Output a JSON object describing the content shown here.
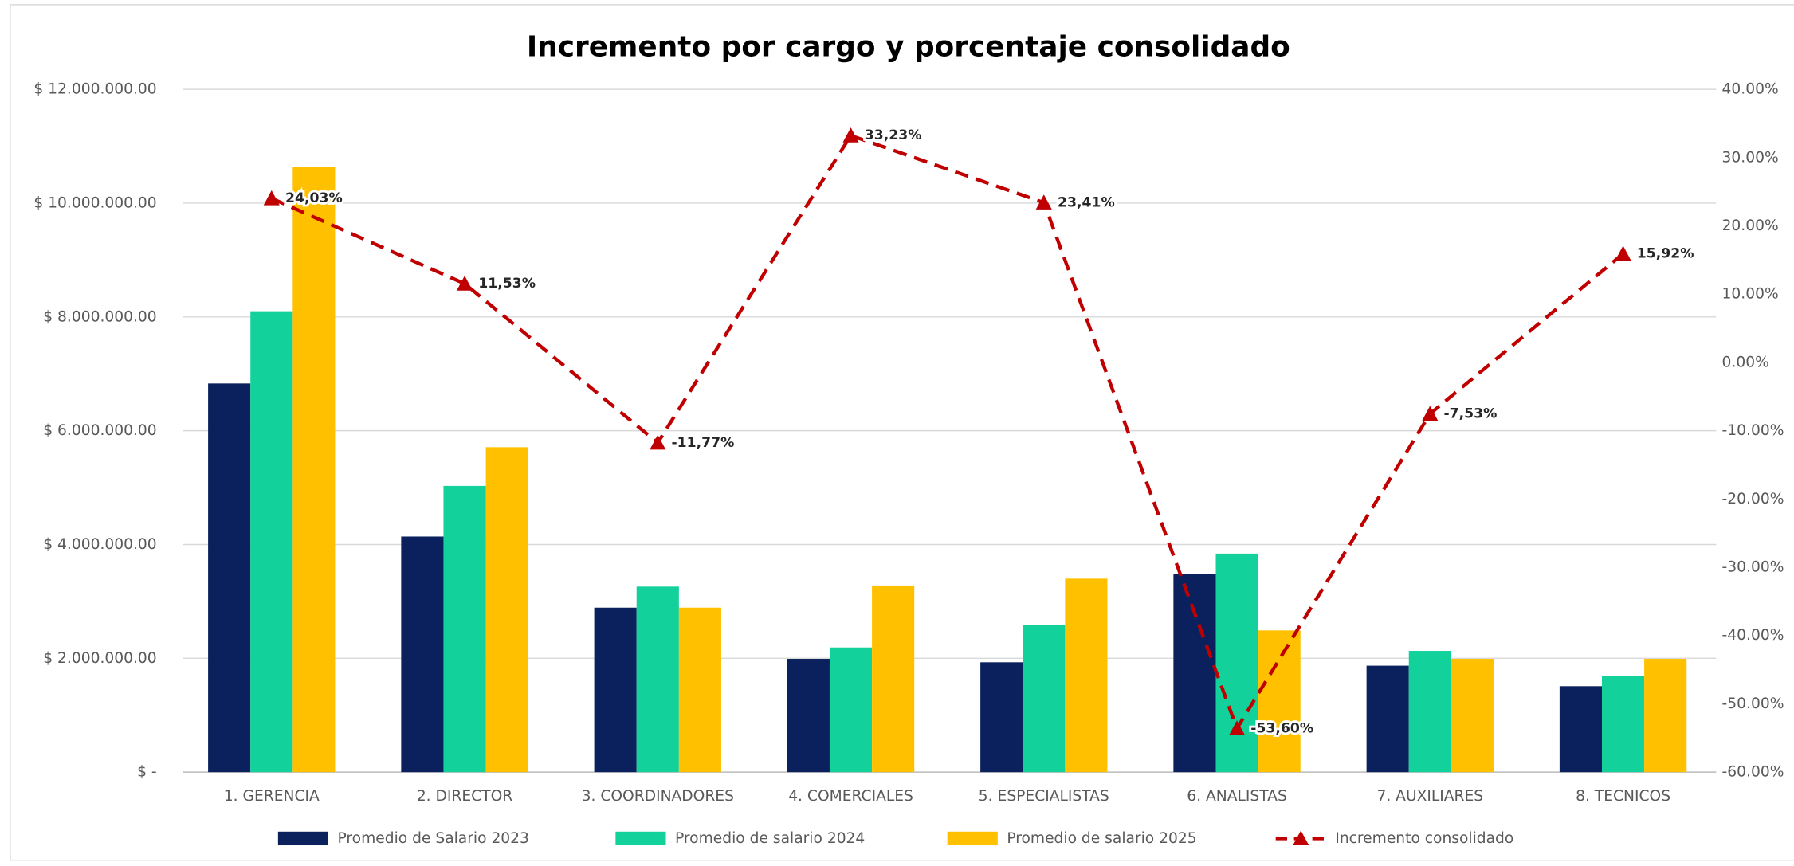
{
  "chart_data": {
    "type": "bar",
    "title": "Incremento por cargo y porcentaje consolidado",
    "categories": [
      "1. GERENCIA",
      "2. DIRECTOR",
      "3. COORDINADORES",
      "4. COMERCIALES",
      "5. ESPECIALISTAS",
      "6. ANALISTAS",
      "7. AUXILIARES",
      "8. TECNICOS"
    ],
    "series": [
      {
        "name": "Promedio de Salario  2023",
        "type": "bar",
        "color": "#0b215e",
        "values": [
          6830000,
          4140000,
          2890000,
          1990000,
          1930000,
          3480000,
          1870000,
          1510000
        ]
      },
      {
        "name": "Promedio de salario 2024",
        "type": "bar",
        "color": "#12d19b",
        "values": [
          8100000,
          5030000,
          3260000,
          2190000,
          2590000,
          3840000,
          2130000,
          1690000
        ]
      },
      {
        "name": "Promedio de salario 2025",
        "type": "bar",
        "color": "#ffc000",
        "values": [
          10630000,
          5710000,
          2890000,
          3280000,
          3400000,
          2490000,
          1990000,
          1990000
        ]
      },
      {
        "name": "Incremento consolidado",
        "type": "line",
        "axis": "y2",
        "color": "#c00000",
        "values": [
          24.03,
          11.53,
          -11.77,
          33.23,
          23.41,
          -53.6,
          -7.53,
          15.92
        ],
        "value_labels": [
          "24,03%",
          "11,53%",
          "-11,77%",
          "33,23%",
          "23,41%",
          "-53,60%",
          "-7,53%",
          "15,92%"
        ]
      }
    ],
    "ylim": [
      0,
      12000000
    ],
    "yticks": [
      {
        "value": 0,
        "label": "$ -"
      },
      {
        "value": 2000000,
        "label": "$ 2.000.000.00"
      },
      {
        "value": 4000000,
        "label": "$ 4.000.000.00"
      },
      {
        "value": 6000000,
        "label": "$ 6.000.000.00"
      },
      {
        "value": 8000000,
        "label": "$ 8.000.000.00"
      },
      {
        "value": 10000000,
        "label": "$ 10.000.000.00"
      },
      {
        "value": 12000000,
        "label": "$ 12.000.000.00"
      }
    ],
    "y2lim": [
      -60,
      40
    ],
    "y2ticks": [
      {
        "value": -60,
        "label": "-60.00%"
      },
      {
        "value": -50,
        "label": "-50.00%"
      },
      {
        "value": -40,
        "label": "-40.00%"
      },
      {
        "value": -30,
        "label": "-30.00%"
      },
      {
        "value": -20,
        "label": "-20.00%"
      },
      {
        "value": -10,
        "label": "-10.00%"
      },
      {
        "value": 0,
        "label": "0.00%"
      },
      {
        "value": 10,
        "label": "10.00%"
      },
      {
        "value": 20,
        "label": "20.00%"
      },
      {
        "value": 30,
        "label": "30.00%"
      },
      {
        "value": 40,
        "label": "40.00%"
      }
    ],
    "grid": true,
    "legend": "bottom"
  }
}
